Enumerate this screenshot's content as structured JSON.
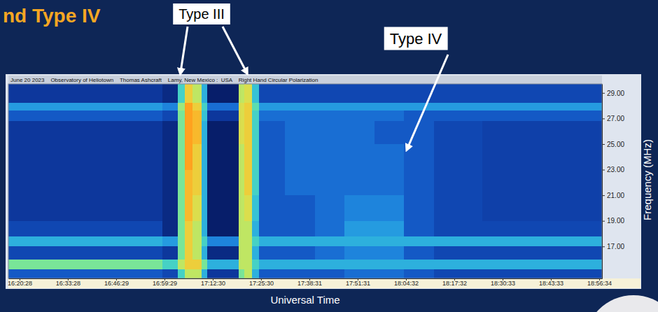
{
  "chart_data": {
    "type": "heatmap",
    "title": "nd Type IV",
    "subtitle": "June 20 2023    Observatory of Heliotown    Thomas Ashcraft    Lamy, New Mexico :  USA    Right Hand Circular Polarization",
    "annotations": [
      "Type III",
      "Type IV"
    ],
    "x_label": "Universal Time",
    "y_label": "Frequency (MHz)",
    "xlim": [
      "16:17:28",
      "18:57:19"
    ],
    "xticks": [
      "16:20:28",
      "16:33:28",
      "16:46:29",
      "16:59:29",
      "17:12:30",
      "17:25:30",
      "17:38:31",
      "17:51:31",
      "18:04:32",
      "18:17:32",
      "18:30:33",
      "18:43:33",
      "18:56:34"
    ],
    "ylim": [
      14.5,
      29.7
    ],
    "yticks": [
      {
        "value": 17,
        "label": "17.00"
      },
      {
        "value": 19,
        "label": "19.00"
      },
      {
        "value": 21,
        "label": "21.00"
      },
      {
        "value": 23,
        "label": "23.00"
      },
      {
        "value": 25,
        "label": "25.00"
      },
      {
        "value": 27,
        "label": "27.00"
      },
      {
        "value": 29,
        "label": "29.00"
      }
    ],
    "grid": false,
    "zlim": [
      0,
      10
    ],
    "x": [
      "16:17:28",
      "16:40:00",
      "16:59:00",
      "17:03:00",
      "17:05:00",
      "17:07:00",
      "17:09:30",
      "17:11:00",
      "17:19:30",
      "17:21:00",
      "17:23:00",
      "17:25:00",
      "17:32:00",
      "17:40:00",
      "17:48:00",
      "17:56:00",
      "18:04:00",
      "18:12:00",
      "18:25:00"
    ],
    "y": [
      14.5,
      15.2,
      16.0,
      17.0,
      17.8,
      19.0,
      21.0,
      23.0,
      25.0,
      26.8,
      27.6,
      28.2
    ],
    "values": [
      [
        3,
        3,
        2.5,
        6,
        8,
        8,
        5,
        2,
        7,
        8,
        5,
        3,
        3,
        3,
        3.5,
        3.5,
        3,
        2.5,
        2.5
      ],
      [
        7,
        7,
        6,
        8,
        9,
        9,
        7,
        5,
        8,
        8,
        6,
        5,
        5,
        5,
        5,
        5,
        5,
        5,
        5
      ],
      [
        2.5,
        2.5,
        2,
        7,
        9,
        8,
        5,
        1.5,
        8,
        8,
        5,
        3,
        3,
        3.5,
        4,
        4,
        3,
        2.5,
        2.5
      ],
      [
        5,
        5,
        4.5,
        7,
        9,
        8,
        6,
        4,
        8,
        8,
        6,
        5,
        5,
        5,
        5,
        5,
        5,
        5,
        5
      ],
      [
        2.5,
        2.5,
        1.5,
        7,
        9,
        8,
        5,
        1,
        8,
        8,
        5,
        3,
        3,
        3.5,
        4.5,
        4.5,
        3,
        2.5,
        2.5
      ],
      [
        2,
        2,
        1.5,
        7,
        9.5,
        8.5,
        5,
        1,
        8,
        8.5,
        5.5,
        3,
        3,
        3.5,
        4,
        4,
        3,
        2.5,
        2.3
      ],
      [
        2,
        2,
        1.5,
        7,
        9.5,
        9,
        5,
        1,
        8,
        9,
        6,
        3,
        3.5,
        3.5,
        3.5,
        3.5,
        3,
        2.5,
        2.3
      ],
      [
        2,
        2,
        1.5,
        7,
        10,
        9,
        5,
        1,
        8,
        9,
        6,
        3,
        3.5,
        3.5,
        3.5,
        3.5,
        3,
        2.5,
        2.3
      ],
      [
        2,
        2,
        1.5,
        7,
        10,
        9.5,
        5,
        1,
        8.5,
        9,
        6,
        3,
        3.5,
        3.5,
        3.5,
        3,
        3,
        2.5,
        2.3
      ],
      [
        3,
        3,
        2.5,
        7,
        10,
        9.5,
        5.5,
        2,
        8.5,
        9,
        6,
        3.5,
        3.5,
        3.5,
        3.5,
        3.5,
        3,
        3,
        3
      ],
      [
        4.5,
        4.5,
        4,
        7.5,
        10,
        9,
        6,
        3.5,
        8.5,
        9,
        6.5,
        4.5,
        4.5,
        4.5,
        4.5,
        4.5,
        4.5,
        4.5,
        4.5
      ],
      [
        2,
        2,
        1.5,
        6,
        9,
        8,
        5,
        1,
        8,
        8.5,
        5.5,
        2.5,
        2.5,
        2.5,
        2.5,
        2.5,
        2.5,
        2.5,
        2.5
      ]
    ]
  }
}
